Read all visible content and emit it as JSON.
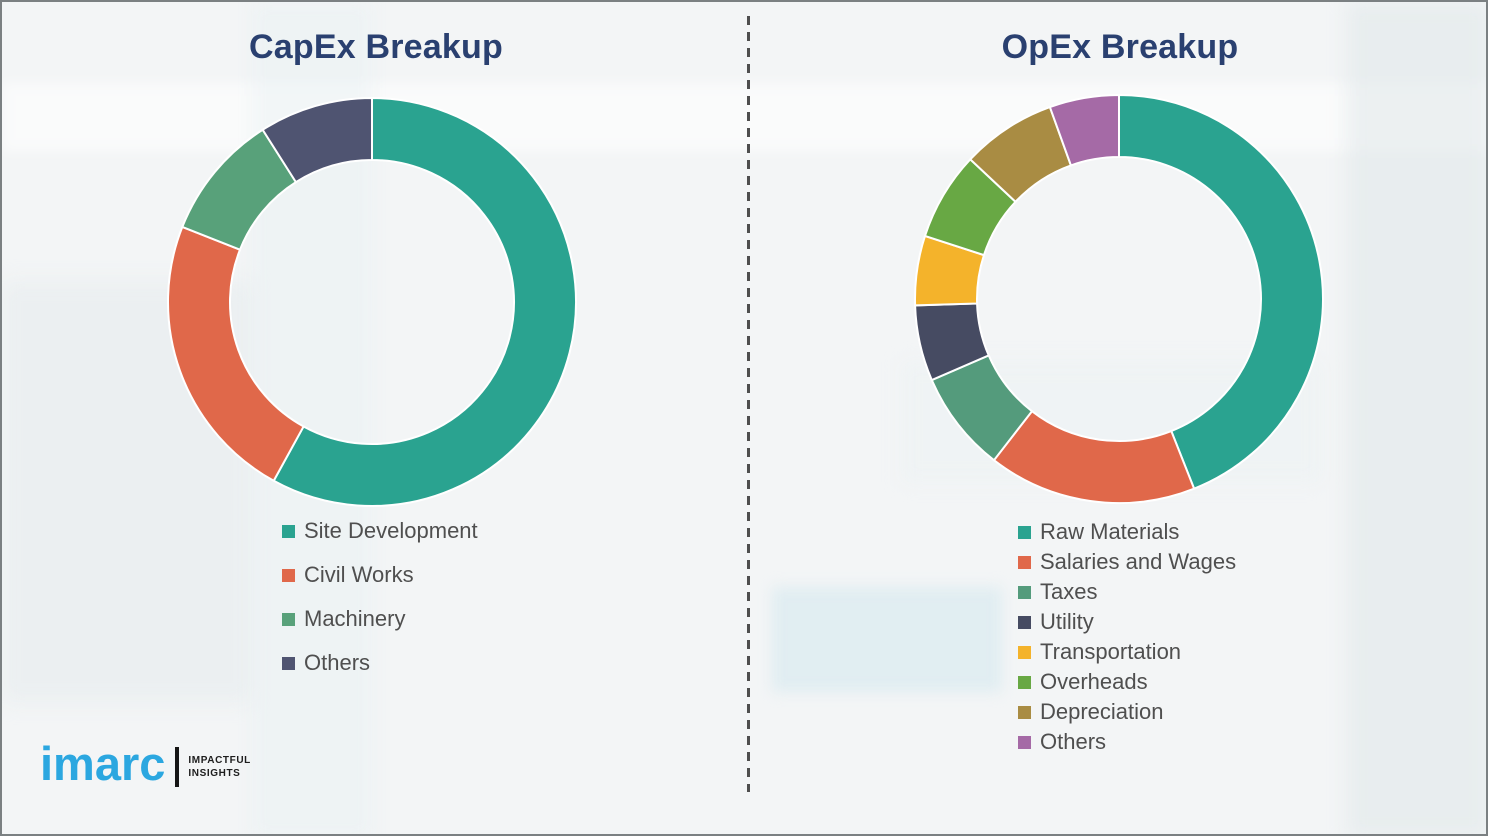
{
  "page": {
    "background_color": "#f3f5f6",
    "title_color": "#2A4070",
    "legend_text_color": "#4f4f4f",
    "divider_color": "#4e4e4e"
  },
  "chart_data": [
    {
      "type": "pie",
      "subtype": "donut",
      "title": "CapEx Breakup",
      "categories": [
        "Site Development",
        "Civil Works",
        "Machinery",
        "Others"
      ],
      "values": [
        58,
        23,
        10,
        9
      ],
      "values_note": "percent, estimated from arc angles (no numeric labels shown)",
      "colors": [
        "#2AA390",
        "#E0684A",
        "#58A17A",
        "#4F5471"
      ],
      "start_angle_deg": 0,
      "direction": "clockwise",
      "legend_position": "below-left",
      "separator_color": "#ffffff"
    },
    {
      "type": "pie",
      "subtype": "donut",
      "title": "OpEx Breakup",
      "categories": [
        "Raw Materials",
        "Salaries and Wages",
        "Taxes",
        "Utility",
        "Transportation",
        "Overheads",
        "Depreciation",
        "Others"
      ],
      "values": [
        44,
        16.5,
        8,
        6,
        5.5,
        7,
        7.5,
        5.5
      ],
      "values_note": "percent, estimated from arc angles (no numeric labels shown)",
      "colors": [
        "#2AA390",
        "#E0684A",
        "#549B7C",
        "#464B62",
        "#F4B32B",
        "#68A844",
        "#A98C43",
        "#A56AA6"
      ],
      "start_angle_deg": 0,
      "direction": "clockwise",
      "legend_position": "below-left",
      "separator_color": "#ffffff"
    }
  ],
  "logo": {
    "brand": "imarc",
    "brand_color": "#2BA7E0",
    "tagline_line1": "IMPACTFUL",
    "tagline_line2": "INSIGHTS"
  }
}
